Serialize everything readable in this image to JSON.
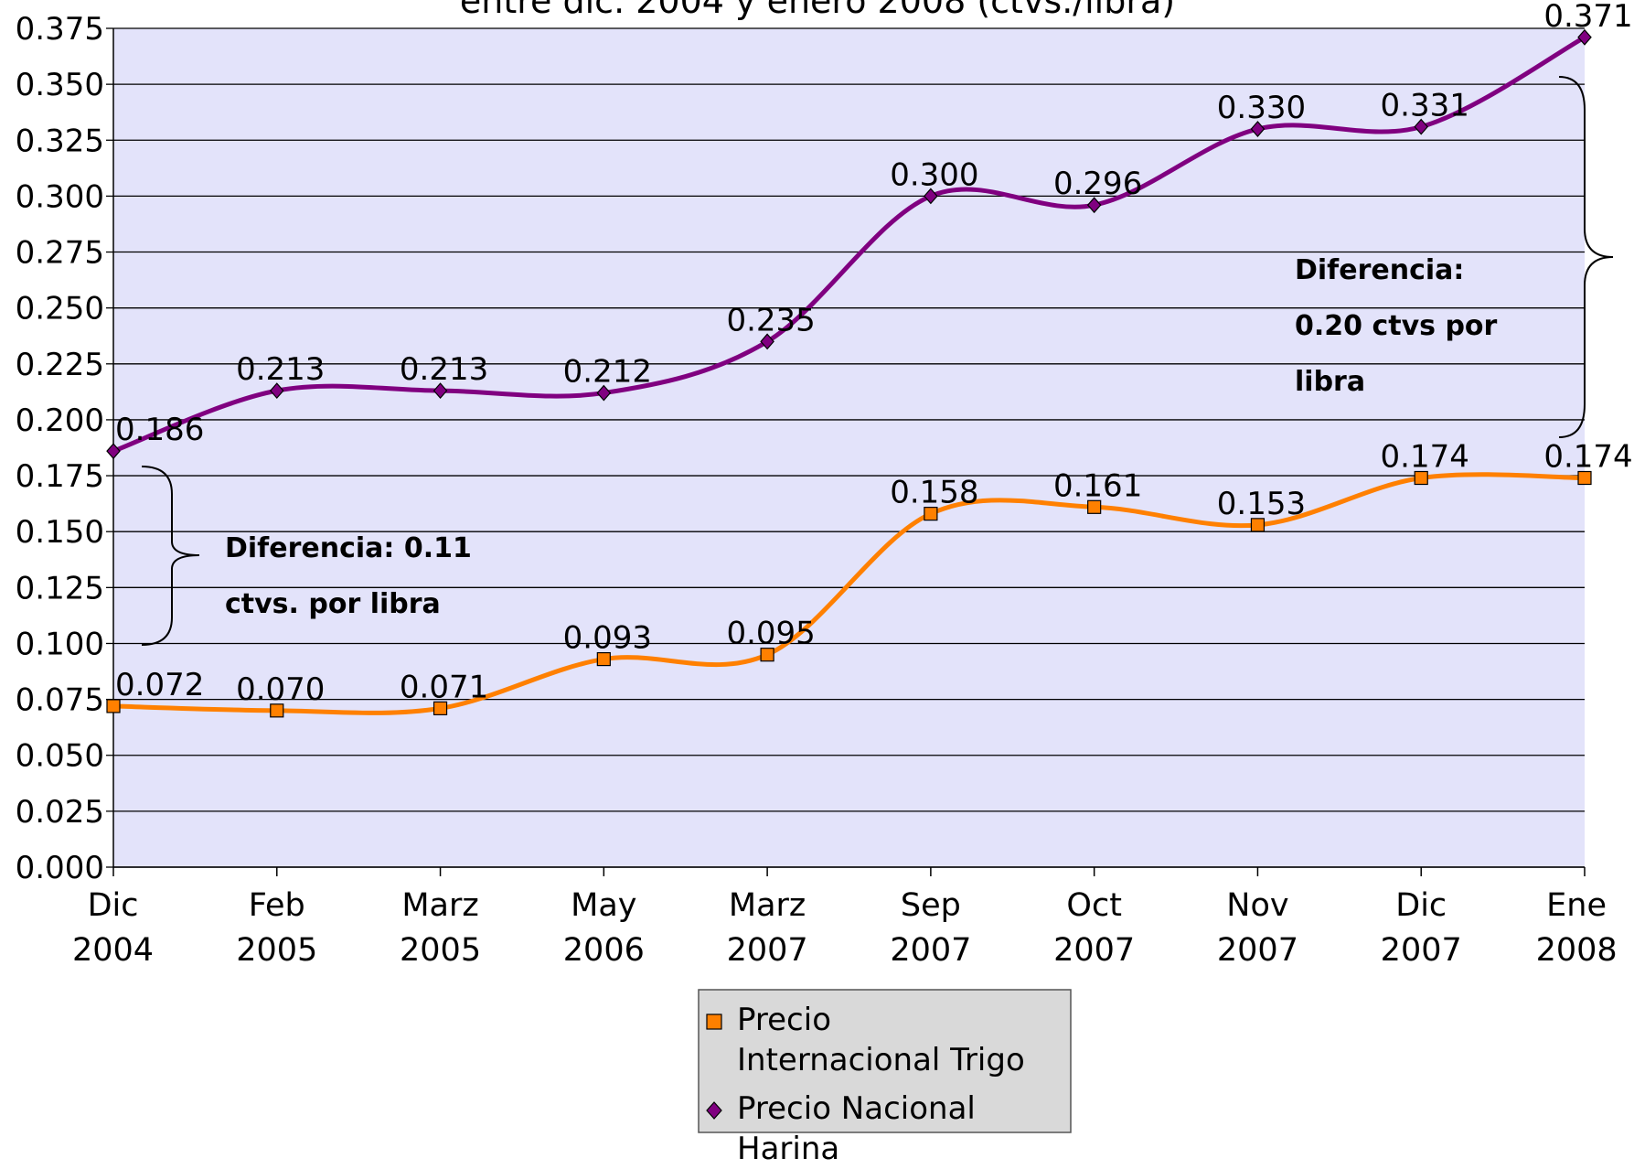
{
  "chart_data": {
    "type": "line",
    "title": "entre dic. 2004 y enero 2008 (ctvs./libra)",
    "categories": [
      "Dic 2004",
      "Feb 2005",
      "Marz 2005",
      "May 2006",
      "Marz 2007",
      "Sep 2007",
      "Oct 2007",
      "Nov 2007",
      "Dic 2007",
      "Ene 2008"
    ],
    "series": [
      {
        "name": "Precio Internacional Trigo",
        "color": "#ff8000",
        "marker": "square",
        "values": [
          0.072,
          0.07,
          0.071,
          0.093,
          0.095,
          0.158,
          0.161,
          0.153,
          0.174,
          0.174
        ],
        "value_labels": [
          "0.072",
          "0.070",
          "0.071",
          "0.093",
          "0.095",
          "0.158",
          "0.161",
          "0.153",
          "0.174",
          "0.174"
        ]
      },
      {
        "name": "Precio Nacional Harina",
        "color": "#800080",
        "marker": "diamond",
        "values": [
          0.186,
          0.213,
          0.213,
          0.212,
          0.235,
          0.3,
          0.296,
          0.33,
          0.331,
          0.371
        ],
        "value_labels": [
          "0.186",
          "0.213",
          "0.213",
          "0.212",
          "0.235",
          "0.300",
          "0.296",
          "0.330",
          "0.331",
          "0.371"
        ]
      }
    ],
    "ylim": [
      0,
      0.375
    ],
    "yticks": [
      {
        "value": 0,
        "label": "0.000"
      },
      0.025,
      {
        "value": 0.05,
        "label": "0.050"
      },
      0.075,
      {
        "value": 0.1,
        "label": "0.100"
      },
      0.125,
      {
        "value": 0.15,
        "label": "0.150"
      },
      0.175,
      {
        "value": 0.2,
        "label": "0.200"
      },
      0.225,
      {
        "value": 0.25,
        "label": "0.250"
      },
      0.275,
      {
        "value": 0.3,
        "label": "0.300"
      },
      0.325,
      {
        "value": 0.35,
        "label": "0.350"
      },
      0.375
    ],
    "grid": true,
    "legend": "bottom",
    "annotations": [
      {
        "lines": [
          "Diferencia: 0.11",
          "ctvs. por libra"
        ]
      },
      {
        "lines": [
          "Diferencia:",
          "0.20 ctvs por",
          "libra"
        ]
      }
    ]
  }
}
